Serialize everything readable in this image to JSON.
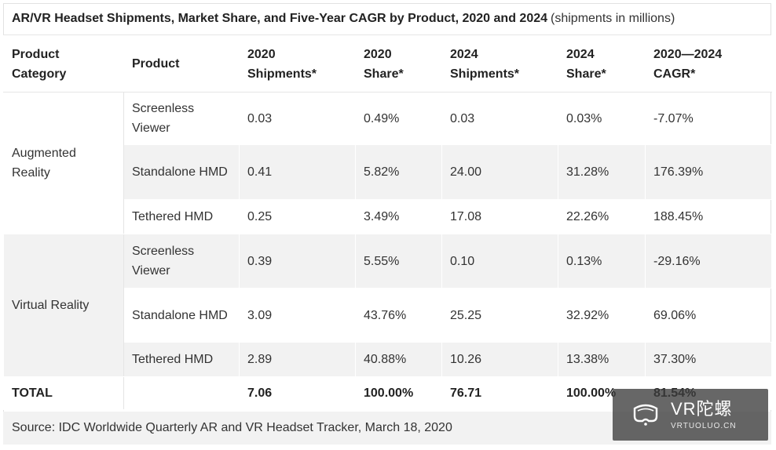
{
  "chart_data": {
    "type": "table",
    "title": "AR/VR Headset Shipments, Market Share, and Five-Year CAGR by Product, 2020 and 2024",
    "subtitle": "(shipments in millions)",
    "columns": [
      "Product Category",
      "Product",
      "2020 Shipments*",
      "2020 Share*",
      "2024 Shipments*",
      "2024 Share*",
      "2020—2024 CAGR*"
    ],
    "groups": [
      {
        "category": "Augmented Reality",
        "rows": [
          {
            "product": "Screenless Viewer",
            "ship_2020": "0.03",
            "share_2020": "0.49%",
            "ship_2024": "0.03",
            "share_2024": "0.03%",
            "cagr": "-7.07%"
          },
          {
            "product": "Standalone HMD",
            "ship_2020": "0.41",
            "share_2020": "5.82%",
            "ship_2024": "24.00",
            "share_2024": "31.28%",
            "cagr": "176.39%"
          },
          {
            "product": "Tethered HMD",
            "ship_2020": "0.25",
            "share_2020": "3.49%",
            "ship_2024": "17.08",
            "share_2024": "22.26%",
            "cagr": "188.45%"
          }
        ]
      },
      {
        "category": "Virtual Reality",
        "rows": [
          {
            "product": "Screenless Viewer",
            "ship_2020": "0.39",
            "share_2020": "5.55%",
            "ship_2024": "0.10",
            "share_2024": "0.13%",
            "cagr": "-29.16%"
          },
          {
            "product": "Standalone HMD",
            "ship_2020": "3.09",
            "share_2020": "43.76%",
            "ship_2024": "25.25",
            "share_2024": "32.92%",
            "cagr": "69.06%"
          },
          {
            "product": "Tethered HMD",
            "ship_2020": "2.89",
            "share_2020": "40.88%",
            "ship_2024": "10.26",
            "share_2024": "13.38%",
            "cagr": "37.30%"
          }
        ]
      }
    ],
    "total": {
      "label": "TOTAL",
      "product": "",
      "ship_2020": "7.06",
      "share_2020": "100.00%",
      "ship_2024": "76.71",
      "share_2024": "100.00%",
      "cagr": "81.54%"
    },
    "source": "Source: IDC Worldwide Quarterly AR and VR Headset Tracker, March 18, 2020"
  },
  "watermark": {
    "logo": "vr-headset-logo-icon",
    "main": "VR陀螺",
    "sub": "VRTUOLUO.CN"
  },
  "colors": {
    "shade": "#f2f2f2",
    "text": "#222222",
    "border": "#e5e5e5"
  }
}
